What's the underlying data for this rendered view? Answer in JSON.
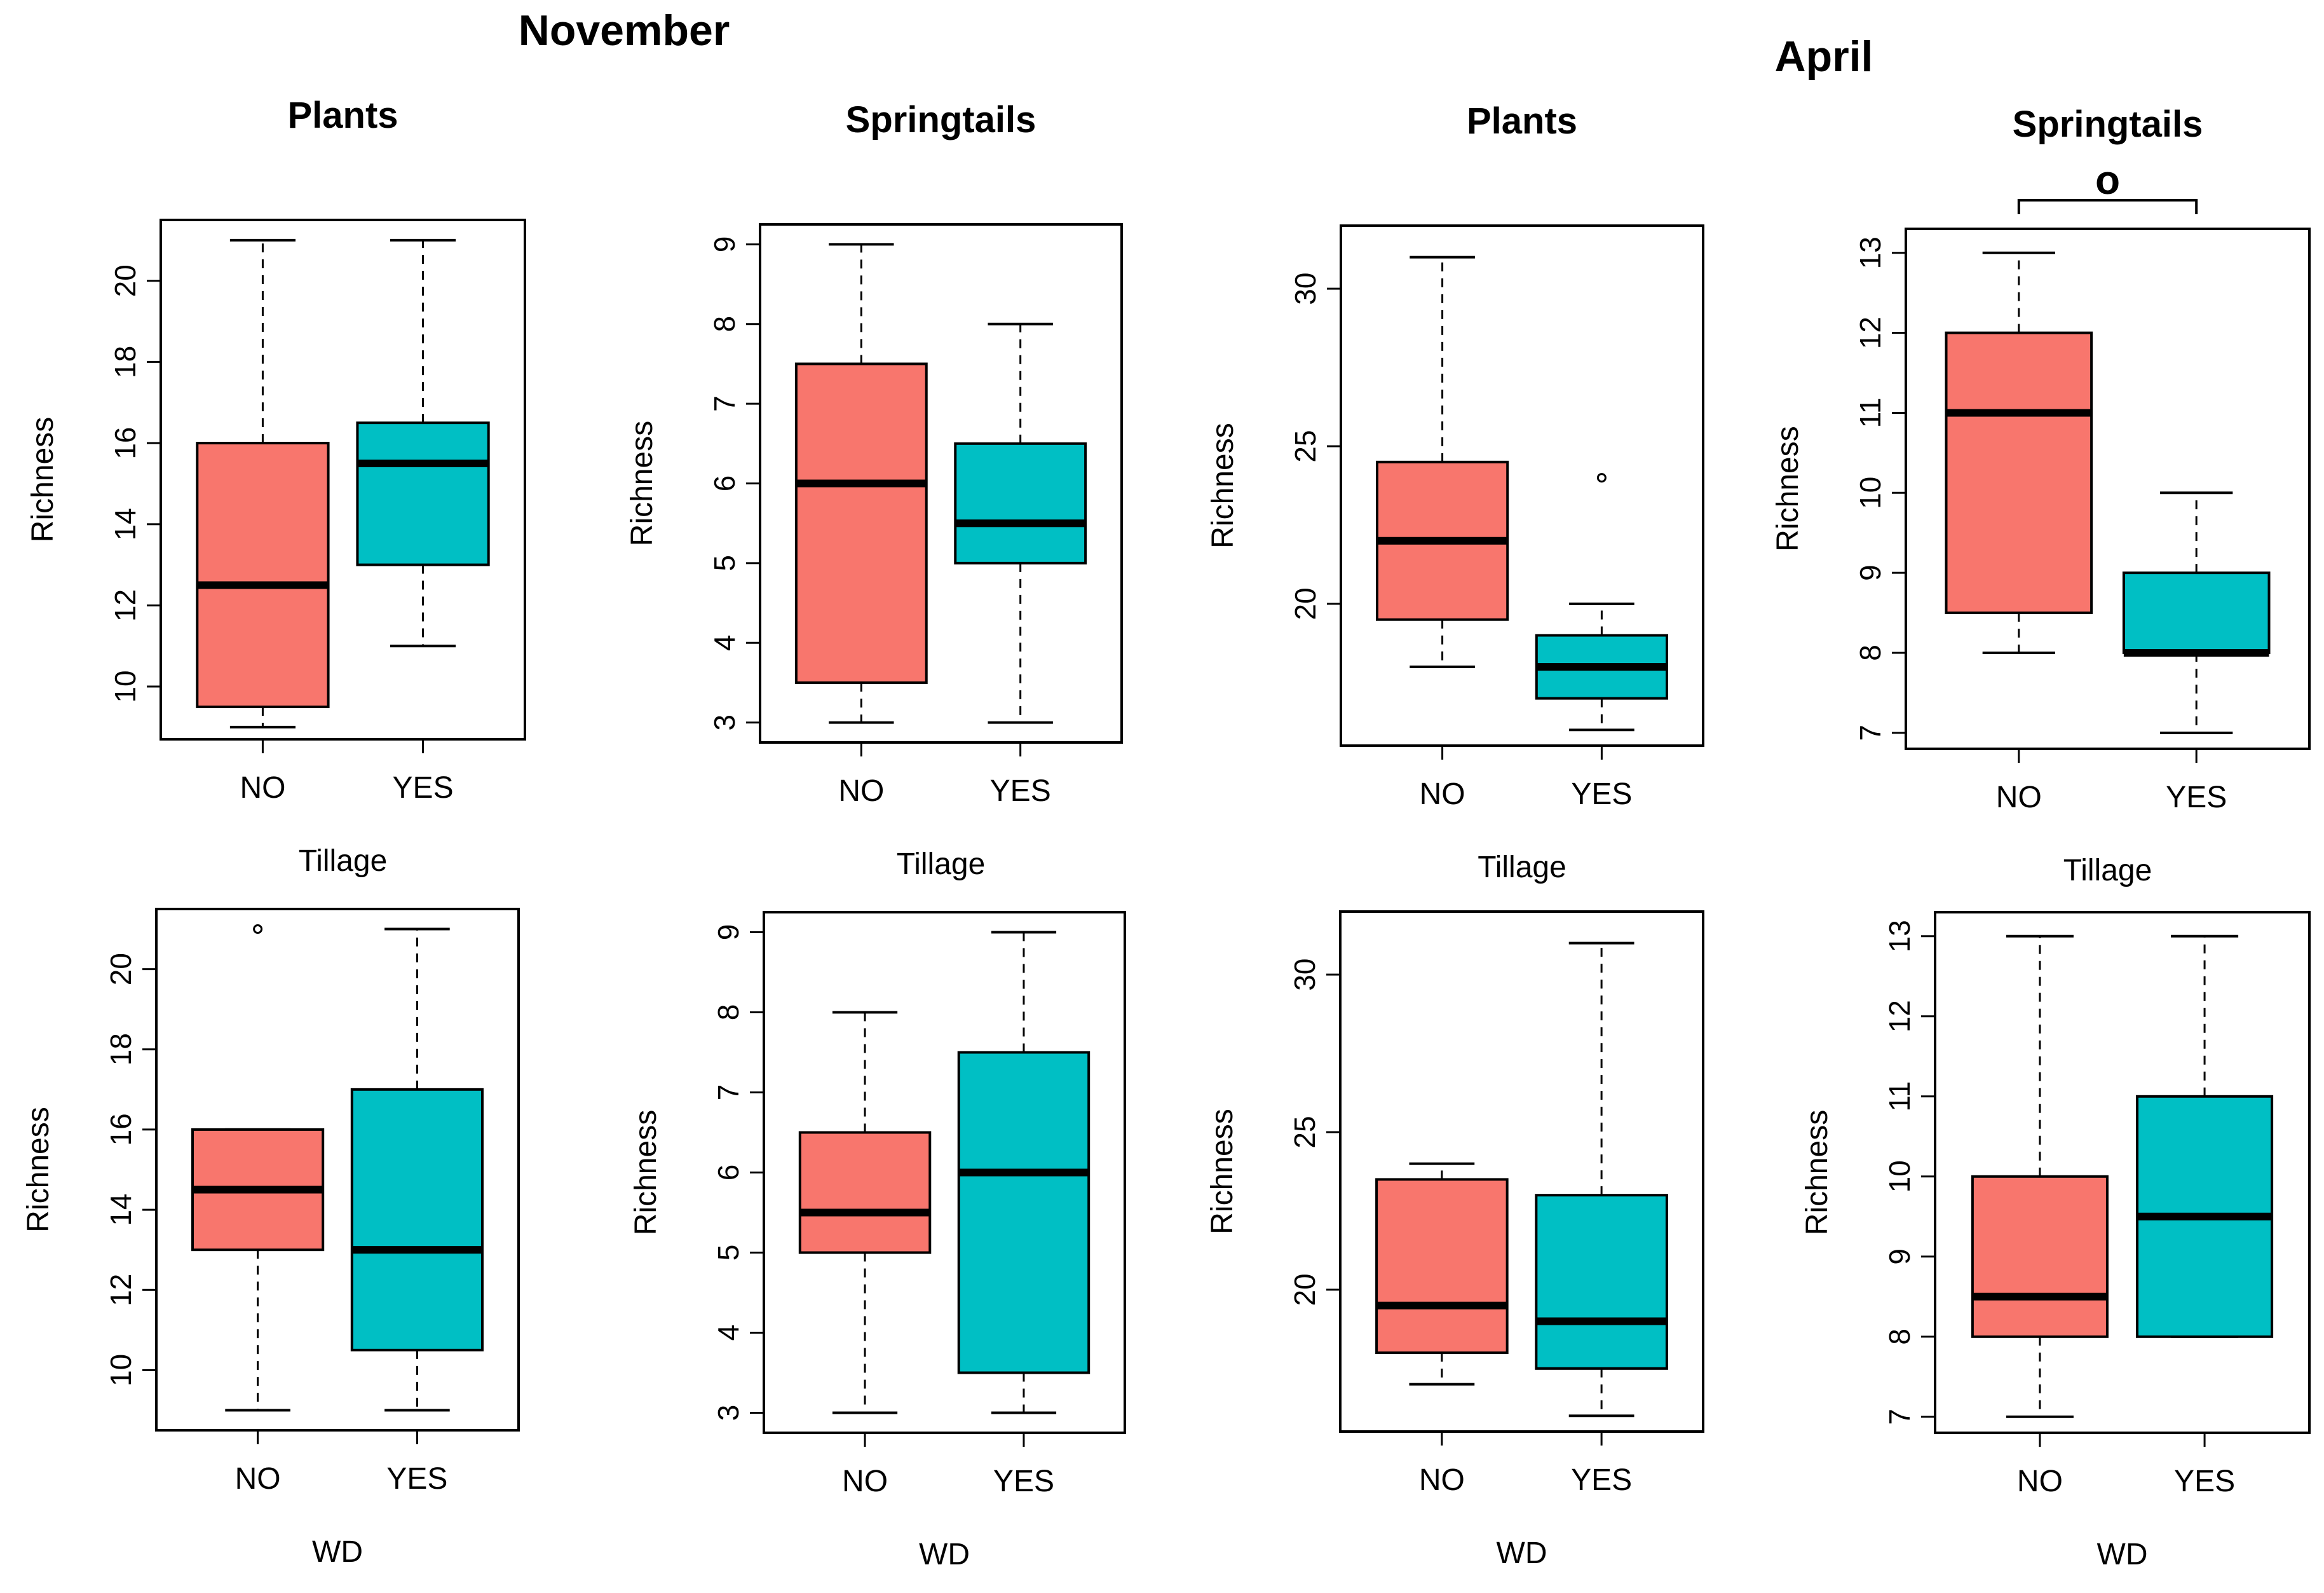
{
  "figure": {
    "month_titles": [
      "November",
      "April"
    ]
  },
  "chart_data": [
    {
      "type": "boxplot",
      "month": "November",
      "title": "Plants",
      "xlabel": "Tillage",
      "ylabel": "Richness",
      "ylim": [
        8.7,
        21.5
      ],
      "yticks": [
        10,
        12,
        14,
        16,
        18,
        20
      ],
      "categories": [
        "NO",
        "YES"
      ],
      "colors": [
        "#F8766D",
        "#00BFC4"
      ],
      "boxes": [
        {
          "min": 9,
          "q1": 9.5,
          "median": 12.5,
          "q3": 16,
          "max": 21,
          "outliers": []
        },
        {
          "min": 11,
          "q1": 13,
          "median": 15.5,
          "q3": 16.5,
          "max": 21,
          "outliers": []
        }
      ]
    },
    {
      "type": "boxplot",
      "month": "November",
      "title": "Springtails",
      "xlabel": "Tillage",
      "ylabel": "Richness",
      "ylim": [
        2.75,
        9.25
      ],
      "yticks": [
        3,
        4,
        5,
        6,
        7,
        8,
        9
      ],
      "categories": [
        "NO",
        "YES"
      ],
      "colors": [
        "#F8766D",
        "#00BFC4"
      ],
      "boxes": [
        {
          "min": 3,
          "q1": 3.5,
          "median": 6,
          "q3": 7.5,
          "max": 9,
          "outliers": []
        },
        {
          "min": 3,
          "q1": 5,
          "median": 5.5,
          "q3": 6.5,
          "max": 8,
          "outliers": []
        }
      ]
    },
    {
      "type": "boxplot",
      "month": "April",
      "title": "Plants",
      "xlabel": "Tillage",
      "ylabel": "Richness",
      "ylim": [
        15.5,
        32
      ],
      "yticks": [
        20,
        25,
        30
      ],
      "categories": [
        "NO",
        "YES"
      ],
      "colors": [
        "#F8766D",
        "#00BFC4"
      ],
      "boxes": [
        {
          "min": 18,
          "q1": 19.5,
          "median": 22,
          "q3": 24.5,
          "max": 31,
          "outliers": []
        },
        {
          "min": 16,
          "q1": 17,
          "median": 18,
          "q3": 19,
          "max": 20,
          "outliers": [
            24
          ]
        }
      ]
    },
    {
      "type": "boxplot",
      "month": "April",
      "title": "Springtails",
      "xlabel": "Tillage",
      "ylabel": "Richness",
      "ylim": [
        6.8,
        13.3
      ],
      "yticks": [
        7,
        8,
        9,
        10,
        11,
        12,
        13
      ],
      "categories": [
        "NO",
        "YES"
      ],
      "colors": [
        "#F8766D",
        "#00BFC4"
      ],
      "significance": "o",
      "boxes": [
        {
          "min": 8,
          "q1": 8.5,
          "median": 11,
          "q3": 12,
          "max": 13,
          "outliers": []
        },
        {
          "min": 7,
          "q1": 8,
          "median": 8,
          "q3": 9,
          "max": 10,
          "outliers": []
        }
      ]
    },
    {
      "type": "boxplot",
      "month": "November",
      "title": "",
      "xlabel": "WD",
      "ylabel": "Richness",
      "ylim": [
        8.5,
        21.5
      ],
      "yticks": [
        10,
        12,
        14,
        16,
        18,
        20
      ],
      "categories": [
        "NO",
        "YES"
      ],
      "colors": [
        "#F8766D",
        "#00BFC4"
      ],
      "boxes": [
        {
          "min": 9,
          "q1": 13,
          "median": 14.5,
          "q3": 16,
          "max": 16,
          "outliers": [
            21
          ]
        },
        {
          "min": 9,
          "q1": 10.5,
          "median": 13,
          "q3": 17,
          "max": 21,
          "outliers": []
        }
      ]
    },
    {
      "type": "boxplot",
      "month": "November",
      "title": "",
      "xlabel": "WD",
      "ylabel": "Richness",
      "ylim": [
        2.75,
        9.25
      ],
      "yticks": [
        3,
        4,
        5,
        6,
        7,
        8,
        9
      ],
      "categories": [
        "NO",
        "YES"
      ],
      "colors": [
        "#F8766D",
        "#00BFC4"
      ],
      "boxes": [
        {
          "min": 3,
          "q1": 5,
          "median": 5.5,
          "q3": 6.5,
          "max": 8,
          "outliers": []
        },
        {
          "min": 3,
          "q1": 3.5,
          "median": 6,
          "q3": 7.5,
          "max": 9,
          "outliers": []
        }
      ]
    },
    {
      "type": "boxplot",
      "month": "April",
      "title": "",
      "xlabel": "WD",
      "ylabel": "Richness",
      "ylim": [
        15.5,
        32
      ],
      "yticks": [
        20,
        25,
        30
      ],
      "categories": [
        "NO",
        "YES"
      ],
      "colors": [
        "#F8766D",
        "#00BFC4"
      ],
      "boxes": [
        {
          "min": 17,
          "q1": 18,
          "median": 19.5,
          "q3": 23.5,
          "max": 24,
          "outliers": []
        },
        {
          "min": 16,
          "q1": 17.5,
          "median": 19,
          "q3": 23,
          "max": 31,
          "outliers": []
        }
      ]
    },
    {
      "type": "boxplot",
      "month": "April",
      "title": "",
      "xlabel": "WD",
      "ylabel": "Richness",
      "ylim": [
        6.8,
        13.3
      ],
      "yticks": [
        7,
        8,
        9,
        10,
        11,
        12,
        13
      ],
      "categories": [
        "NO",
        "YES"
      ],
      "colors": [
        "#F8766D",
        "#00BFC4"
      ],
      "boxes": [
        {
          "min": 7,
          "q1": 8,
          "median": 8.5,
          "q3": 10,
          "max": 13,
          "outliers": []
        },
        {
          "min": 8,
          "q1": 8,
          "median": 9.5,
          "q3": 11,
          "max": 13,
          "outliers": []
        }
      ]
    }
  ]
}
